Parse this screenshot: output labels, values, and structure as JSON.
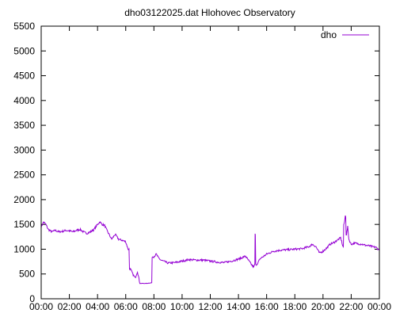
{
  "chart_data": {
    "type": "line",
    "title": "dho03122025.dat Hlohovec Observatory",
    "xlabel": "",
    "ylabel": "",
    "x_ticks": [
      "00:00",
      "02:00",
      "04:00",
      "06:00",
      "08:00",
      "10:00",
      "12:00",
      "14:00",
      "16:00",
      "18:00",
      "20:00",
      "22:00",
      "00:00"
    ],
    "y_ticks": [
      0,
      500,
      1000,
      1500,
      2000,
      2500,
      3000,
      3500,
      4000,
      4500,
      5000,
      5500
    ],
    "xlim": [
      "00:00",
      "24:00"
    ],
    "ylim": [
      0,
      5500
    ],
    "grid": false,
    "legend_position": "top-right",
    "series": [
      {
        "name": "dho",
        "color": "#9400d3",
        "x": [
          "00:00",
          "00:10",
          "00:20",
          "00:30",
          "00:45",
          "01:00",
          "01:15",
          "01:30",
          "01:45",
          "02:00",
          "02:15",
          "02:30",
          "02:45",
          "03:00",
          "03:15",
          "03:30",
          "03:45",
          "04:00",
          "04:10",
          "04:20",
          "04:30",
          "04:40",
          "05:00",
          "05:15",
          "05:30",
          "05:45",
          "06:00",
          "06:10",
          "06:20",
          "06:30",
          "06:40",
          "06:50",
          "07:00",
          "07:15",
          "07:30",
          "07:45",
          "08:00",
          "08:10",
          "08:20",
          "08:30",
          "08:45",
          "09:00",
          "09:30",
          "10:00",
          "10:30",
          "11:00",
          "11:30",
          "12:00",
          "12:30",
          "13:00",
          "13:30",
          "14:00",
          "14:15",
          "14:30",
          "14:45",
          "15:00",
          "15:05",
          "15:10",
          "15:12",
          "15:15",
          "15:20",
          "15:30",
          "15:45",
          "16:00",
          "16:15",
          "16:30",
          "17:00",
          "17:30",
          "18:00",
          "18:30",
          "19:00",
          "19:15",
          "19:30",
          "19:45",
          "20:00",
          "20:15",
          "20:30",
          "20:45",
          "21:00",
          "21:15",
          "21:25",
          "21:30",
          "21:35",
          "21:40",
          "21:45",
          "21:50",
          "22:00",
          "22:15",
          "22:30",
          "22:45",
          "23:00",
          "23:15",
          "23:30",
          "23:45",
          "24:00"
        ],
        "y": [
          1450,
          1550,
          1500,
          1400,
          1350,
          1380,
          1350,
          1360,
          1380,
          1370,
          1350,
          1380,
          1400,
          1350,
          1320,
          1350,
          1400,
          1500,
          1550,
          1500,
          1480,
          1380,
          1200,
          1300,
          1200,
          1180,
          1150,
          1000,
          600,
          500,
          420,
          550,
          310,
          310,
          310,
          320,
          850,
          900,
          820,
          780,
          750,
          720,
          730,
          760,
          790,
          780,
          780,
          760,
          740,
          730,
          760,
          800,
          830,
          860,
          760,
          660,
          640,
          700,
          1300,
          700,
          680,
          800,
          850,
          900,
          930,
          960,
          980,
          990,
          1000,
          1010,
          1050,
          1100,
          1050,
          920,
          960,
          1020,
          1100,
          1130,
          1180,
          1230,
          1050,
          1500,
          1670,
          1300,
          1450,
          1200,
          1100,
          1120,
          1110,
          1100,
          1080,
          1070,
          1050,
          1040,
          980
        ]
      }
    ]
  }
}
